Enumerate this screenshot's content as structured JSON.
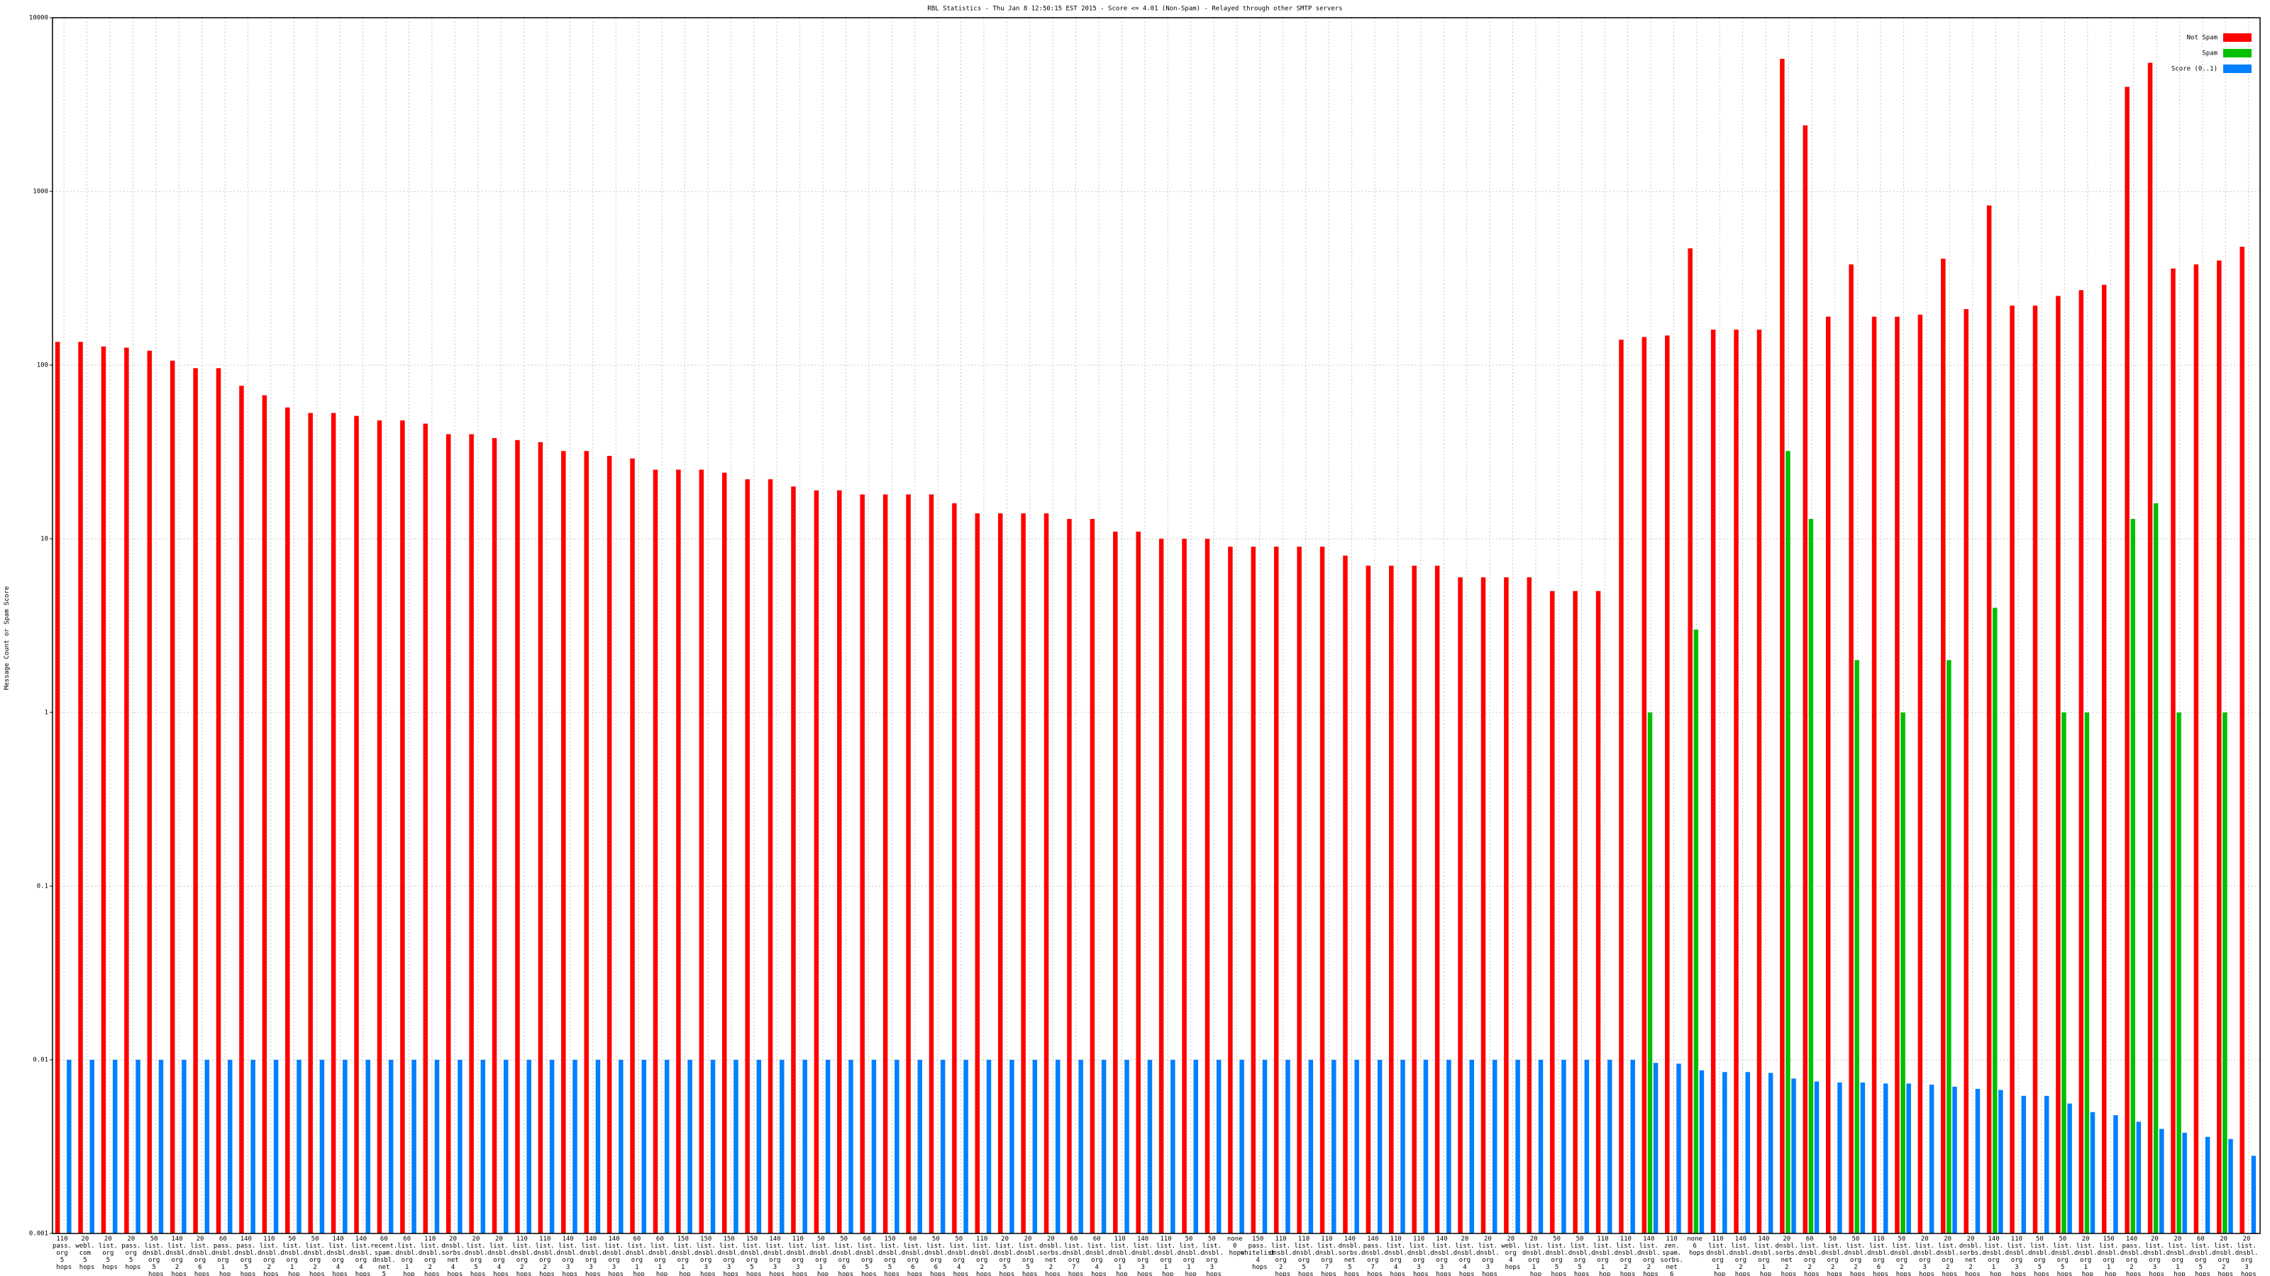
{
  "chart_data": {
    "type": "bar",
    "title": "RBL Statistics - Thu Jan  8 12:50:15 EST 2015 - Score <= 4.01 (Non-Spam) - Relayed through other SMTP servers",
    "y_label": "Message Count or Spam Score",
    "log_scale": true,
    "grid": true,
    "legend_position": "top-right",
    "ylim": [
      0.001,
      10000
    ],
    "yticks": [
      0.001,
      0.01,
      0.1,
      1,
      10,
      100,
      1000,
      10000
    ],
    "categories": [
      "110 pass. org 5 hops",
      "20 webl. com 5 hops",
      "20 list. org 5 hops",
      "20 pass. org 5 hops",
      "50 list. dnsbl. org 5 hops",
      "140 list. dnsbl. org 2 hops",
      "20 list. dnsbl. org 6 hops",
      "60 pass. dnsbl. org 1 hop",
      "140 pass. dnsbl. org 5 hops",
      "110 list. dnsbl. org 2 hops",
      "50 list. dnsbl. org 1 hop",
      "50 list. dnsbl. org 2 hops",
      "140 list. dnsbl. org 4 hops",
      "140 list. dnsbl. org 4 hops",
      "60 recent. spam. dnsbl. net 5 hops",
      "60 list. dnsbl. org 1 hop",
      "110 list. dnsbl. org 2 hops",
      "20 dnsbl. sorbs. net 4 hops",
      "20 list. dnsbl. org 5 hops",
      "20 list. dnsbl. org 4 hops",
      "110 list. dnsbl. org 2 hops",
      "110 list. dnsbl. org 2 hops",
      "140 list. dnsbl. org 3 hops",
      "140 list. dnsbl. org 3 hops",
      "140 list. dnsbl. org 3 hops",
      "60 list. dnsbl. org 1 hop",
      "60 list. dnsbl. org 1 hop",
      "150 list. dnsbl. org 1 hop",
      "150 list. dnsbl. org 3 hops",
      "150 list. dnsbl. org 3 hops",
      "150 list. dnsbl. org 5 hops",
      "140 list. dnsbl. org 3 hops",
      "110 list. dnsbl. org 3 hops",
      "50 list. dnsbl. org 1 hop",
      "50 list. dnsbl. org 6 hops",
      "60 list. dnsbl. org 5 hops",
      "150 list. dnsbl. org 5 hops",
      "60 list. dnsbl. org 6 hops",
      "50 list. dnsbl. org 6 hops",
      "50 list. dnsbl. org 4 hops",
      "110 list. dnsbl. org 2 hops",
      "20 list. dnsbl. org 5 hops",
      "20 list. dnsbl. org 5 hops",
      "20 dnsbl. sorbs. net 2 hops",
      "60 list. dnsbl. org 7 hops",
      "60 list. dnsbl. org 4 hops",
      "110 list. dnsbl. org 1 hop",
      "140 list. dnsbl. org 3 hops",
      "110 list. dnsbl. org 1 hop",
      "50 list. dnsbl. org 1 hop",
      "50 list. dnsbl. org 3 hops",
      "none 0 hops",
      "150 pass. whitelist 4 hops",
      "110 list. dnsbl. org 2 hops",
      "110 list. dnsbl. org 5 hops",
      "110 list. dnsbl. org 7 hops",
      "140 dnsbl. sorbs. net 5 hops",
      "140 pass. dnsbl. org 7 hops",
      "110 list. dnsbl. org 4 hops",
      "110 list. dnsbl. org 3 hops",
      "140 list. dnsbl. org 3 hops",
      "20 list. dnsbl. org 4 hops",
      "20 list. dnsbl. org 3 hops",
      "20 webl. org 4 hops",
      "20 list. dnsbl. org 1 hop",
      "50 list. dnsbl. org 5 hops",
      "50 list. dnsbl. org 5 hops",
      "110 list. dnsbl. org 1 hop",
      "110 list. dnsbl. org 2 hops",
      "140 list. dnsbl. org 2 hops",
      "110 zen. spam. sorbs. net 6 hops",
      "none 6 hops",
      "110 list. dnsbl. org 1 hop",
      "140 list. dnsbl. org 2 hops",
      "140 list. dnsbl. org 1 hop",
      "20 dnsbl. sorbs. net 2 hops",
      "60 list. dnsbl. org 2 hops",
      "50 list. dnsbl. org 2 hops",
      "50 list. dnsbl. org 2 hops",
      "110 list. dnsbl. org 6 hops",
      "50 list. dnsbl. org 2 hops",
      "20 list. dnsbl. org 3 hops",
      "20 list. dnsbl. org 2 hops",
      "20 dnsbl. sorbs. net 2 hops",
      "140 list. dnsbl. org 1 hop",
      "110 list. dnsbl. org 3 hops",
      "50 list. dnsbl. org 5 hops",
      "50 list. dnsbl. org 5 hops",
      "20 list. dnsbl. org 1 hop",
      "150 list. dnsbl. org 1 hop",
      "140 pass. dnsbl. org 2 hops",
      "20 list. dnsbl. org 3 hops",
      "20 list. dnsbl. org 1 hop",
      "60 list. dnsbl. org 5 hops",
      "20 list. dnsbl. org 2 hops",
      "20 list. dnsbl. org 3 hops"
    ],
    "series": [
      {
        "name": "Not Spam",
        "color": "#ff0000",
        "values": [
          136,
          136,
          128,
          126,
          121,
          106,
          96,
          96,
          76,
          67,
          57,
          53,
          53,
          51,
          48,
          48,
          46,
          40,
          40,
          38,
          37,
          36,
          32,
          32,
          30,
          29,
          25,
          25,
          25,
          24,
          22,
          22,
          20,
          19,
          19,
          18,
          18,
          18,
          18,
          16,
          14,
          14,
          14,
          14,
          13,
          13,
          11,
          11,
          10,
          10,
          10,
          9,
          9,
          9,
          9,
          9,
          8,
          7,
          7,
          7,
          7,
          6,
          6,
          6,
          6,
          5,
          5,
          5,
          140,
          145,
          148,
          470,
          160,
          160,
          160,
          5800,
          2400,
          190,
          380,
          190,
          190,
          195,
          410,
          210,
          830,
          220,
          220,
          250,
          270,
          290,
          4000,
          5500,
          360,
          380,
          400,
          480
        ]
      },
      {
        "name": "Spam",
        "color": "#00c000",
        "values": [
          null,
          null,
          null,
          null,
          null,
          null,
          null,
          null,
          null,
          null,
          null,
          null,
          null,
          null,
          null,
          null,
          null,
          null,
          null,
          null,
          null,
          null,
          null,
          null,
          null,
          null,
          null,
          null,
          null,
          null,
          null,
          null,
          null,
          null,
          null,
          null,
          null,
          null,
          null,
          null,
          null,
          null,
          null,
          null,
          null,
          null,
          null,
          null,
          null,
          null,
          null,
          null,
          null,
          null,
          null,
          null,
          null,
          null,
          null,
          null,
          null,
          null,
          null,
          null,
          null,
          null,
          null,
          null,
          null,
          1,
          null,
          3,
          null,
          null,
          null,
          32,
          13,
          null,
          2,
          null,
          1,
          null,
          2,
          null,
          4,
          null,
          null,
          1,
          1,
          null,
          13,
          16,
          1,
          null,
          1,
          null
        ]
      },
      {
        "name": "Score (0..1)",
        "color": "#0080ff",
        "values": [
          0.01,
          0.01,
          0.01,
          0.01,
          0.01,
          0.01,
          0.01,
          0.01,
          0.01,
          0.01,
          0.01,
          0.01,
          0.01,
          0.01,
          0.01,
          0.01,
          0.01,
          0.01,
          0.01,
          0.01,
          0.01,
          0.01,
          0.01,
          0.01,
          0.01,
          0.01,
          0.01,
          0.01,
          0.01,
          0.01,
          0.01,
          0.01,
          0.01,
          0.01,
          0.01,
          0.01,
          0.01,
          0.01,
          0.01,
          0.01,
          0.01,
          0.01,
          0.01,
          0.01,
          0.01,
          0.01,
          0.01,
          0.01,
          0.01,
          0.01,
          0.01,
          0.01,
          0.01,
          0.01,
          0.01,
          0.01,
          0.01,
          0.01,
          0.01,
          0.01,
          0.01,
          0.01,
          0.01,
          0.01,
          0.01,
          0.01,
          0.01,
          0.01,
          0.01,
          0.0096,
          0.0095,
          0.0087,
          0.0085,
          0.0085,
          0.0084,
          0.0078,
          0.0075,
          0.0074,
          0.0074,
          0.0073,
          0.0073,
          0.0072,
          0.007,
          0.0068,
          0.0067,
          0.0062,
          0.0062,
          0.0056,
          0.005,
          0.0048,
          0.0044,
          0.004,
          0.0038,
          0.0036,
          0.0035,
          0.0028
        ]
      }
    ]
  }
}
